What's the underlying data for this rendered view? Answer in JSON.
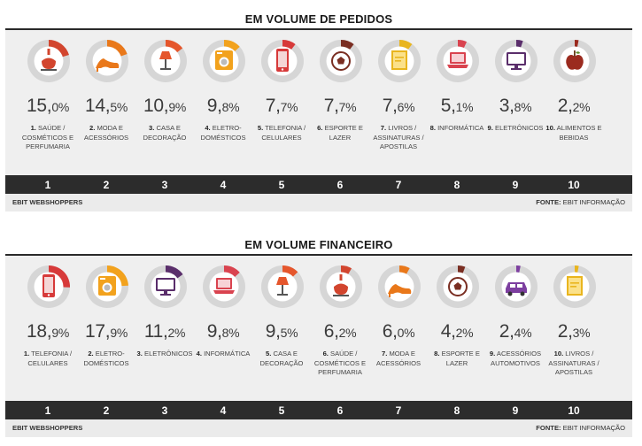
{
  "colors": {
    "ring_bg": "#d6d6d6",
    "disc": "#ffffff",
    "rankbar": "#2c2c2c"
  },
  "sections": [
    {
      "title": "EM VOLUME DE PEDIDOS",
      "source_left": "EBIT WEBSHOPPERS",
      "source_label": "FONTE:",
      "source_right": "EBIT INFORMAÇÃO",
      "items": [
        {
          "rank": "1",
          "whole": "15,",
          "dec": "0%",
          "pct": 15.0,
          "color": "#d2452e",
          "icon": "perfume-icon",
          "num": "1.",
          "label": "SAÚDE / COSMÉTICOS E PERFUMARIA"
        },
        {
          "rank": "2",
          "whole": "14,",
          "dec": "5%",
          "pct": 14.5,
          "color": "#e9781a",
          "icon": "high-heel-icon",
          "num": "2.",
          "label": "MODA E ACESSÓRIOS"
        },
        {
          "rank": "3",
          "whole": "10,",
          "dec": "9%",
          "pct": 10.9,
          "color": "#e5562c",
          "icon": "lamp-icon",
          "num": "3.",
          "label": "CASA E DECORAÇÃO"
        },
        {
          "rank": "4",
          "whole": "9,",
          "dec": "8%",
          "pct": 9.8,
          "color": "#f2a21d",
          "icon": "washing-machine-icon",
          "num": "4.",
          "label": "ELETRO- DOMÉSTICOS"
        },
        {
          "rank": "5",
          "whole": "7,",
          "dec": "7%",
          "pct": 7.7,
          "color": "#d73a3a",
          "icon": "phone-icon",
          "num": "5.",
          "label": "TELEFONIA / CELULARES"
        },
        {
          "rank": "6",
          "whole": "7,",
          "dec": "7%",
          "pct": 7.7,
          "color": "#7a2e22",
          "icon": "soccer-ball-icon",
          "num": "6.",
          "label": "ESPORTE E LAZER"
        },
        {
          "rank": "7",
          "whole": "7,",
          "dec": "6%",
          "pct": 7.6,
          "color": "#e9b51e",
          "icon": "book-icon",
          "num": "7.",
          "label": "LIVROS / ASSINATURAS / APOSTILAS"
        },
        {
          "rank": "8",
          "whole": "5,",
          "dec": "1%",
          "pct": 5.1,
          "color": "#d9434f",
          "icon": "laptop-icon",
          "num": "8.",
          "label": "INFORMÁTICA"
        },
        {
          "rank": "9",
          "whole": "3,",
          "dec": "8%",
          "pct": 3.8,
          "color": "#5a2e6b",
          "icon": "tv-icon",
          "num": "9.",
          "label": "ELETRÔNICOS"
        },
        {
          "rank": "10",
          "whole": "2,",
          "dec": "2%",
          "pct": 2.2,
          "color": "#9b2b1f",
          "icon": "apple-icon",
          "num": "10.",
          "label": "ALIMENTOS E BEBIDAS"
        }
      ]
    },
    {
      "title": "EM VOLUME FINANCEIRO",
      "source_left": "EBIT WEBSHOPPERS",
      "source_label": "FONTE:",
      "source_right": "EBIT INFORMAÇÃO",
      "items": [
        {
          "rank": "1",
          "whole": "18,",
          "dec": "9%",
          "pct": 18.9,
          "color": "#d73a3a",
          "icon": "phone-icon",
          "num": "1.",
          "label": "TELEFONIA / CELULARES"
        },
        {
          "rank": "2",
          "whole": "17,",
          "dec": "9%",
          "pct": 17.9,
          "color": "#f2a21d",
          "icon": "washing-machine-icon",
          "num": "2.",
          "label": "ELETRO- DOMÉSTICOS"
        },
        {
          "rank": "3",
          "whole": "11,",
          "dec": "2%",
          "pct": 11.2,
          "color": "#5a2e6b",
          "icon": "tv-icon",
          "num": "3.",
          "label": "ELETRÔNICOS"
        },
        {
          "rank": "4",
          "whole": "9,",
          "dec": "8%",
          "pct": 9.8,
          "color": "#d9434f",
          "icon": "laptop-icon",
          "num": "4.",
          "label": "INFORMÁTICA"
        },
        {
          "rank": "5",
          "whole": "9,",
          "dec": "5%",
          "pct": 9.5,
          "color": "#e5562c",
          "icon": "lamp-icon",
          "num": "5.",
          "label": "CASA E DECORAÇÃO"
        },
        {
          "rank": "6",
          "whole": "6,",
          "dec": "2%",
          "pct": 6.2,
          "color": "#d2452e",
          "icon": "perfume-icon",
          "num": "6.",
          "label": "SAÚDE / COSMÉTICOS E PERFUMARIA"
        },
        {
          "rank": "7",
          "whole": "6,",
          "dec": "0%",
          "pct": 6.0,
          "color": "#e9781a",
          "icon": "high-heel-icon",
          "num": "7.",
          "label": "MODA E ACESSÓRIOS"
        },
        {
          "rank": "8",
          "whole": "4,",
          "dec": "2%",
          "pct": 4.2,
          "color": "#7a2e22",
          "icon": "soccer-ball-icon",
          "num": "8.",
          "label": "ESPORTE E LAZER"
        },
        {
          "rank": "9",
          "whole": "2,",
          "dec": "4%",
          "pct": 2.4,
          "color": "#7d3fa0",
          "icon": "car-icon",
          "num": "9.",
          "label": "ACESSÓRIOS AUTOMOTIVOS"
        },
        {
          "rank": "10",
          "whole": "2,",
          "dec": "3%",
          "pct": 2.3,
          "color": "#e9b51e",
          "icon": "book-icon",
          "num": "10.",
          "label": "LIVROS / ASSINATURAS / APOSTILAS"
        }
      ]
    }
  ]
}
